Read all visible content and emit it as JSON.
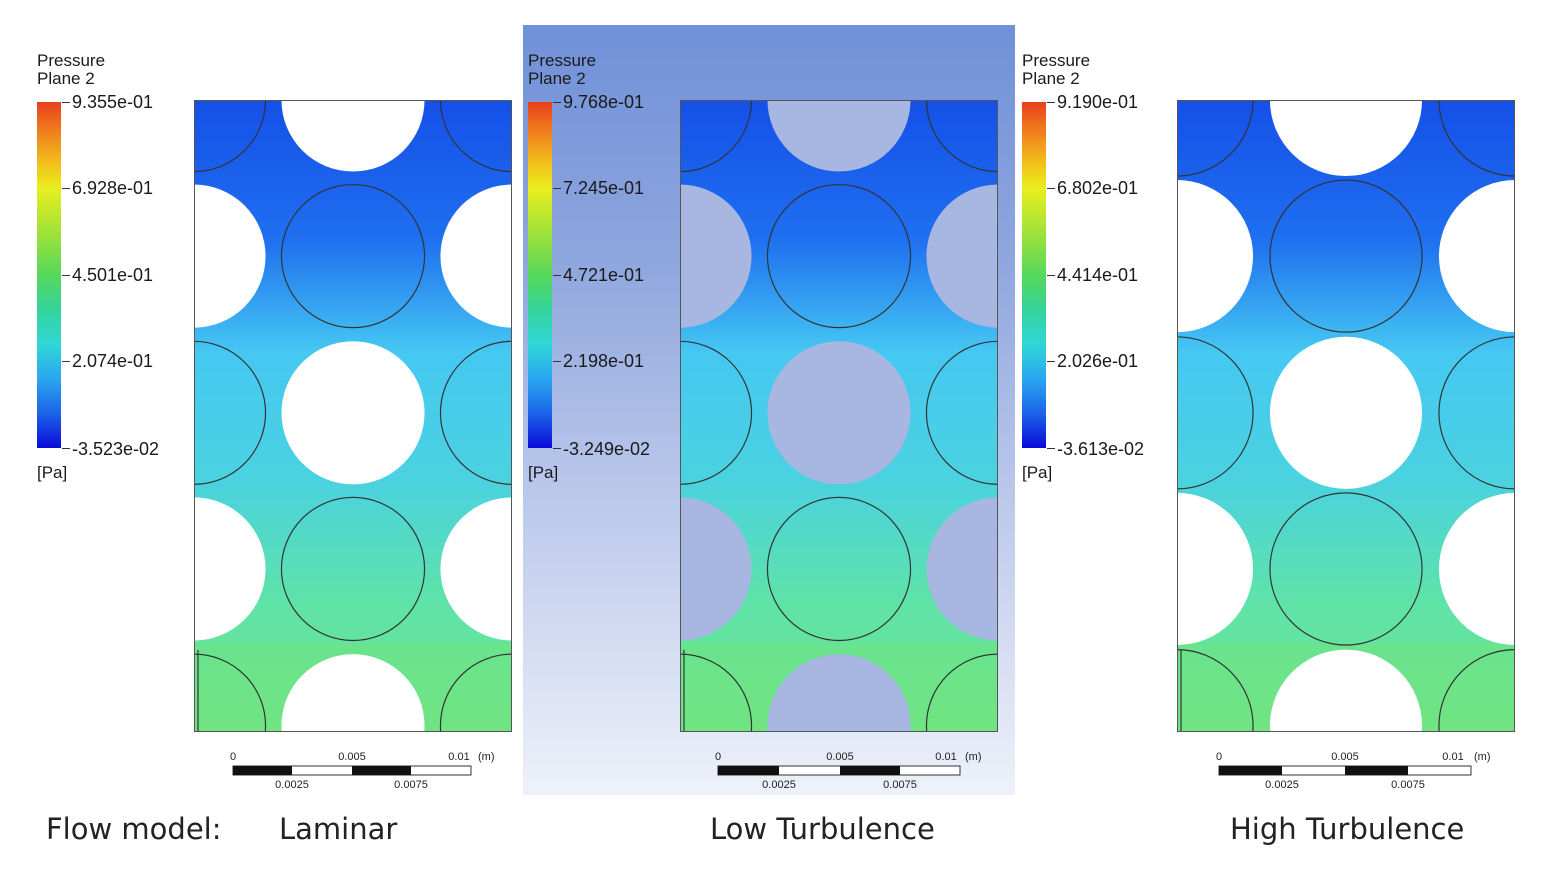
{
  "panels": [
    {
      "id": "laminar",
      "legend_title": "Pressure",
      "legend_subtitle": "Plane 2",
      "unit": "[Pa]",
      "ticks": [
        "9.355e-01",
        "6.928e-01",
        "4.501e-01",
        "2.074e-01",
        "-3.523e-02"
      ],
      "scale_labels_top": [
        "0",
        "0.005",
        "0.01",
        "(m)"
      ],
      "scale_labels_bottom": [
        "0.0025",
        "0.0075"
      ],
      "label": "Laminar",
      "circle_fill": "#ffffff"
    },
    {
      "id": "low-turbulence",
      "legend_title": "Pressure",
      "legend_subtitle": "Plane 2",
      "unit": "[Pa]",
      "ticks": [
        "9.768e-01",
        "7.245e-01",
        "4.721e-01",
        "2.198e-01",
        "-3.249e-02"
      ],
      "scale_labels_top": [
        "0",
        "0.005",
        "0.01",
        "(m)"
      ],
      "scale_labels_bottom": [
        "0.0025",
        "0.0075"
      ],
      "label": "Low Turbulence",
      "circle_fill": "#a8b6e2",
      "highlighted": true
    },
    {
      "id": "high-turbulence",
      "legend_title": "Pressure",
      "legend_subtitle": "Plane 2",
      "unit": "[Pa]",
      "ticks": [
        "9.190e-01",
        "6.802e-01",
        "4.414e-01",
        "2.026e-01",
        "-3.613e-02"
      ],
      "scale_labels_top": [
        "0",
        "0.005",
        "0.01",
        "(m)"
      ],
      "scale_labels_bottom": [
        "0.0025",
        "0.0075"
      ],
      "label": "High Turbulence",
      "circle_fill": "#ffffff"
    }
  ],
  "row_label": "Flow model:",
  "colors": {
    "highlight_top": "#7090d8",
    "field_blue": "#1550e8",
    "field_cyan": "#45c8f2",
    "field_green": "#5fe3a6"
  }
}
